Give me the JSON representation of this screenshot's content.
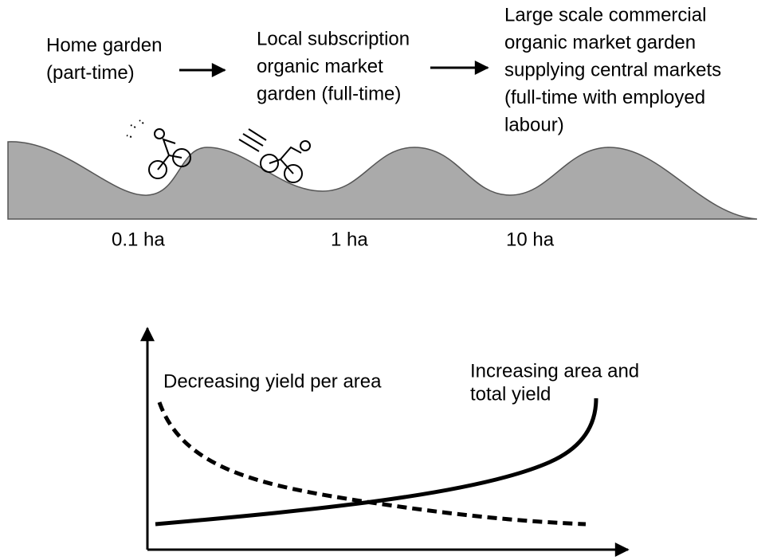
{
  "stages": [
    {
      "lines": [
        "Home garden",
        "(part-time)"
      ]
    },
    {
      "lines": [
        "Local subscription",
        "organic market",
        "garden (full-time)"
      ]
    },
    {
      "lines": [
        "Large scale commercial",
        "organic market garden",
        "supplying central markets",
        "(full-time with employed",
        "labour)"
      ]
    }
  ],
  "sizes": [
    "0.1 ha",
    "1 ha",
    "10 ha"
  ],
  "graph": {
    "decreasing_label": "Decreasing yield per area",
    "increasing_label": [
      "Increasing area and",
      "total yield"
    ]
  }
}
